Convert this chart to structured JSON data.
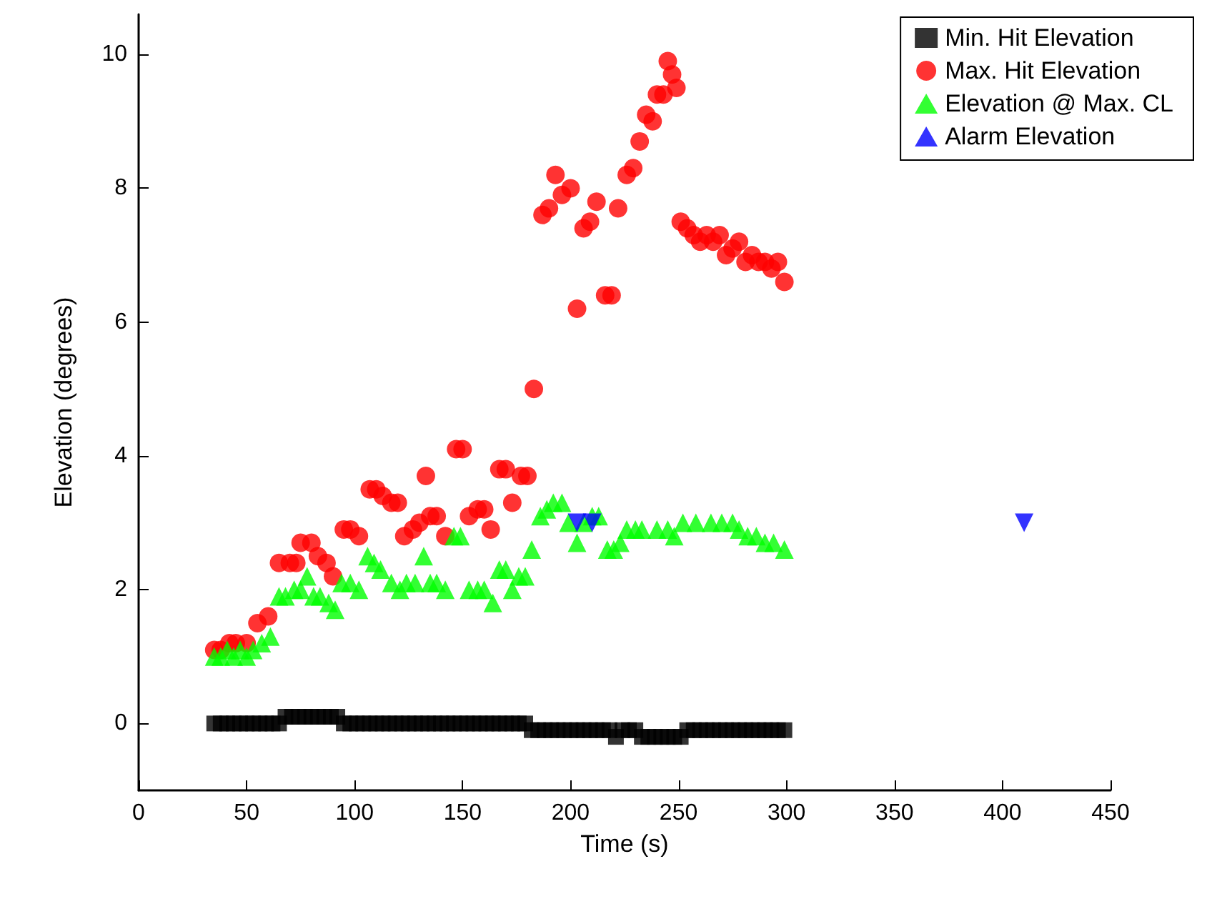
{
  "chart_data": {
    "type": "scatter",
    "xlabel": "Time (s)",
    "ylabel": "Elevation (degrees)",
    "xlim": [
      0,
      450
    ],
    "xticks": [
      0,
      50,
      100,
      150,
      200,
      250,
      300,
      350,
      400,
      450
    ],
    "ylim": [
      -1,
      10.6
    ],
    "yticks": [
      0,
      2,
      4,
      6,
      8,
      10
    ],
    "grid": false,
    "legend": "top right",
    "series": [
      {
        "name": "Min. Hit Elevation",
        "color": "#000000",
        "marker": "square",
        "x": [
          35,
          38,
          41,
          44,
          47,
          50,
          53,
          56,
          59,
          62,
          65,
          68,
          71,
          74,
          77,
          80,
          83,
          86,
          89,
          92,
          95,
          98,
          101,
          104,
          107,
          110,
          113,
          116,
          119,
          122,
          125,
          128,
          131,
          134,
          137,
          140,
          143,
          146,
          149,
          152,
          155,
          158,
          161,
          164,
          167,
          170,
          173,
          176,
          179,
          182,
          185,
          188,
          191,
          194,
          197,
          200,
          203,
          206,
          209,
          212,
          215,
          218,
          221,
          224,
          227,
          230,
          233,
          236,
          239,
          242,
          245,
          248,
          251,
          254,
          257,
          260,
          263,
          266,
          269,
          272,
          275,
          278,
          281,
          284,
          287,
          290,
          293,
          296,
          299
        ],
        "values": [
          0,
          0,
          0,
          0,
          0,
          0,
          0,
          0,
          0,
          0,
          0,
          0.1,
          0.1,
          0.1,
          0.1,
          0.1,
          0.1,
          0.1,
          0.1,
          0.1,
          0,
          0,
          0,
          0,
          0,
          0,
          0,
          0,
          0,
          0,
          0,
          0,
          0,
          0,
          0,
          0,
          0,
          0,
          0,
          0,
          0,
          0,
          0,
          0,
          0,
          0,
          0,
          0,
          0,
          -0.1,
          -0.1,
          -0.1,
          -0.1,
          -0.1,
          -0.1,
          -0.1,
          -0.1,
          -0.1,
          -0.1,
          -0.1,
          -0.1,
          -0.1,
          -0.2,
          -0.1,
          -0.1,
          -0.1,
          -0.2,
          -0.2,
          -0.2,
          -0.2,
          -0.2,
          -0.2,
          -0.2,
          -0.1,
          -0.1,
          -0.1,
          -0.1,
          -0.1,
          -0.1,
          -0.1,
          -0.1,
          -0.1,
          -0.1,
          -0.1,
          -0.1,
          -0.1,
          -0.1,
          -0.1,
          -0.1
        ]
      },
      {
        "name": "Max. Hit Elevation",
        "color": "#ff0000",
        "marker": "circle",
        "x": [
          35,
          38,
          42,
          45,
          50,
          55,
          60,
          65,
          70,
          73,
          75,
          80,
          83,
          87,
          90,
          95,
          98,
          102,
          107,
          110,
          113,
          117,
          120,
          123,
          127,
          130,
          133,
          135,
          138,
          142,
          147,
          150,
          153,
          157,
          160,
          163,
          167,
          170,
          173,
          177,
          180,
          183,
          187,
          190,
          193,
          196,
          200,
          203,
          206,
          209,
          212,
          216,
          219,
          222,
          226,
          229,
          232,
          235,
          238,
          240,
          243,
          245,
          247,
          249,
          251,
          254,
          257,
          260,
          263,
          266,
          269,
          272,
          275,
          278,
          281,
          284,
          287,
          290,
          293,
          296,
          299
        ],
        "values": [
          1.1,
          1.1,
          1.2,
          1.2,
          1.2,
          1.5,
          1.6,
          2.4,
          2.4,
          2.4,
          2.7,
          2.7,
          2.5,
          2.4,
          2.2,
          2.9,
          2.9,
          2.8,
          3.5,
          3.5,
          3.4,
          3.3,
          3.3,
          2.8,
          2.9,
          3.0,
          3.7,
          3.1,
          3.1,
          2.8,
          4.1,
          4.1,
          3.1,
          3.2,
          3.2,
          2.9,
          3.8,
          3.8,
          3.3,
          3.7,
          3.7,
          5.0,
          7.6,
          7.7,
          8.2,
          7.9,
          8.0,
          6.2,
          7.4,
          7.5,
          7.8,
          6.4,
          6.4,
          7.7,
          8.2,
          8.3,
          8.7,
          9.1,
          9.0,
          9.4,
          9.4,
          9.9,
          9.7,
          9.5,
          7.5,
          7.4,
          7.3,
          7.2,
          7.3,
          7.2,
          7.3,
          7.0,
          7.1,
          7.2,
          6.9,
          7.0,
          6.9,
          6.9,
          6.8,
          6.9,
          6.6
        ]
      },
      {
        "name": "Elevation @ Max. CL",
        "color": "#00ff00",
        "marker": "triangle",
        "x": [
          35,
          38,
          41,
          44,
          47,
          50,
          53,
          57,
          61,
          65,
          68,
          72,
          75,
          78,
          81,
          84,
          88,
          91,
          94,
          98,
          102,
          106,
          109,
          112,
          117,
          121,
          124,
          128,
          132,
          135,
          138,
          142,
          146,
          149,
          153,
          157,
          160,
          164,
          167,
          170,
          173,
          176,
          179,
          182,
          186,
          189,
          192,
          196,
          199,
          203,
          206,
          210,
          213,
          217,
          220,
          223,
          226,
          230,
          233,
          240,
          245,
          248,
          252,
          258,
          265,
          270,
          275,
          278,
          282,
          286,
          290,
          294,
          299
        ],
        "values": [
          1.0,
          1.0,
          1.1,
          1.0,
          1.1,
          1.0,
          1.1,
          1.2,
          1.3,
          1.9,
          1.9,
          2.0,
          2.0,
          2.2,
          1.9,
          1.9,
          1.8,
          1.7,
          2.1,
          2.1,
          2.0,
          2.5,
          2.4,
          2.3,
          2.1,
          2.0,
          2.1,
          2.1,
          2.5,
          2.1,
          2.1,
          2.0,
          2.8,
          2.8,
          2.0,
          2.0,
          2.0,
          1.8,
          2.3,
          2.3,
          2.0,
          2.2,
          2.2,
          2.6,
          3.1,
          3.2,
          3.3,
          3.3,
          3.0,
          2.7,
          3.0,
          3.1,
          3.1,
          2.6,
          2.6,
          2.7,
          2.9,
          2.9,
          2.9,
          2.9,
          2.9,
          2.8,
          3.0,
          3.0,
          3.0,
          3.0,
          3.0,
          2.9,
          2.8,
          2.8,
          2.7,
          2.7,
          2.6
        ]
      },
      {
        "name": "Alarm Elevation",
        "color": "#0000ff",
        "marker": "triangle-down",
        "x": [
          203,
          210,
          410
        ],
        "values": [
          3.0,
          3.0,
          3.0
        ]
      }
    ]
  }
}
